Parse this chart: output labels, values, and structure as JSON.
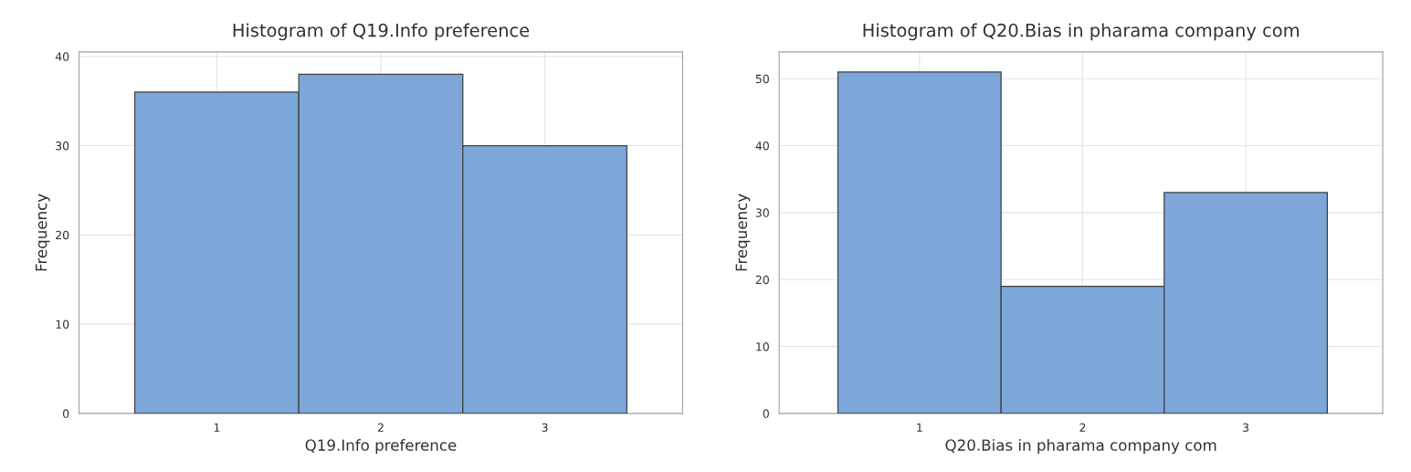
{
  "chart_data": [
    {
      "type": "histogram",
      "title": "Histogram of Q19.Info preference",
      "xlabel": "Q19.Info preference",
      "ylabel": "Frequency",
      "bins": [
        0.5,
        1.5,
        2.5,
        3.5
      ],
      "values": [
        36,
        38,
        30
      ],
      "color": "#7da7d9",
      "xlim": [
        0.16,
        3.84
      ],
      "xticks": [
        1,
        2,
        3
      ],
      "ylim": [
        0,
        40.5
      ],
      "yticks": [
        0,
        10,
        20,
        30,
        40
      ],
      "grid": true
    },
    {
      "type": "histogram",
      "title": "Histogram of Q20.Bias in pharama company com",
      "xlabel": "Q20.Bias in pharama company com",
      "ylabel": "Frequency",
      "bins": [
        0.5,
        1.5,
        2.5,
        3.5
      ],
      "values": [
        51,
        19,
        33
      ],
      "color": "#7da7d9",
      "xlim": [
        0.14,
        3.84
      ],
      "xticks": [
        1,
        2,
        3
      ],
      "ylim": [
        0,
        54
      ],
      "yticks": [
        0,
        10,
        20,
        30,
        40,
        50
      ],
      "grid": true
    }
  ]
}
